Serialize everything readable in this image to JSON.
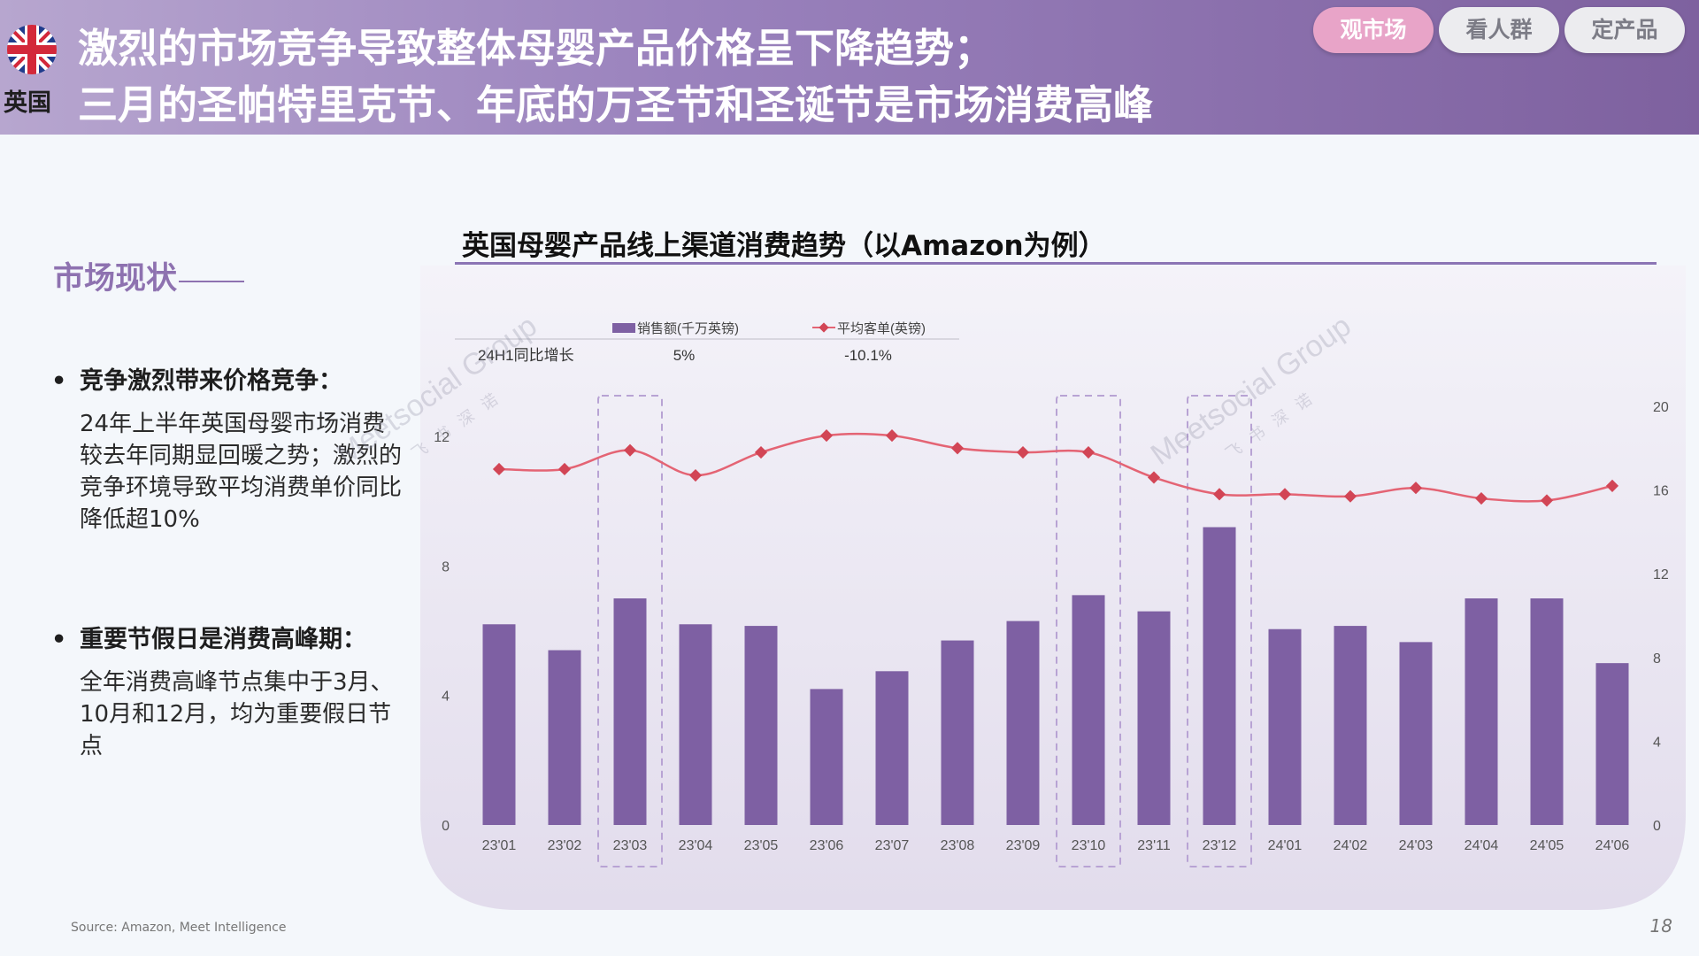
{
  "header": {
    "country": "英国",
    "title_line1": "激烈的市场竞争导致整体母婴产品价格呈下降趋势；",
    "title_line2": "三月的圣帕特里克节、年底的万圣节和圣诞节是市场消费高峰",
    "tabs": [
      {
        "label": "观市场",
        "active": true
      },
      {
        "label": "看人群",
        "active": false
      },
      {
        "label": "定产品",
        "active": false
      }
    ]
  },
  "sidebar": {
    "section_title": "市场现状",
    "bullets": [
      {
        "heading": "竞争激烈带来价格竞争：",
        "body": "24年上半年英国母婴市场消费较去年同期显回暖之势；激烈的竞争环境导致平均消费单价同比降低超10%"
      },
      {
        "heading": "重要节假日是消费高峰期：",
        "body": "全年消费高峰节点集中于3月、10月和12月，均为重要假日节点"
      }
    ]
  },
  "footer": {
    "source": "Source: Amazon, Meet Intelligence",
    "page_number": "18"
  },
  "watermarks": [
    {
      "text": "Meetsocial Group",
      "sub": "飞书深诺"
    },
    {
      "text": "Meetsocial Group",
      "sub": "飞书深诺"
    }
  ],
  "colors": {
    "bar": "#7e60a3",
    "line": "#e46474",
    "marker": "#d24555",
    "highlight_box": "#b8a3d4",
    "accent": "#8e72b0"
  },
  "chart_data": {
    "type": "bar+line",
    "title": "英国母婴产品线上渠道消费趋势（以Amazon为例）",
    "categories": [
      "23'01",
      "23'02",
      "23'03",
      "23'04",
      "23'05",
      "23'06",
      "23'07",
      "23'08",
      "23'09",
      "23'10",
      "23'11",
      "23'12",
      "24'01",
      "24'02",
      "24'03",
      "24'04",
      "24'05",
      "24'06"
    ],
    "series": [
      {
        "name": "销售额(千万英镑)",
        "type": "bar",
        "axis": "left",
        "values": [
          6.2,
          5.4,
          7.0,
          6.2,
          6.15,
          4.2,
          4.75,
          5.7,
          6.3,
          7.1,
          6.6,
          9.2,
          6.05,
          6.15,
          5.65,
          7.0,
          7.0,
          5.0
        ]
      },
      {
        "name": "平均客单(英镑)",
        "type": "line",
        "axis": "right",
        "values": [
          17.0,
          17.0,
          17.9,
          16.7,
          17.8,
          18.6,
          18.6,
          18.0,
          17.8,
          17.8,
          16.6,
          15.8,
          15.8,
          15.7,
          16.1,
          15.6,
          15.5,
          16.2
        ]
      }
    ],
    "left_axis": {
      "ticks": [
        0,
        4,
        8,
        12
      ],
      "ylim": [
        0,
        14
      ]
    },
    "right_axis": {
      "ticks": [
        0,
        4,
        8,
        12,
        16,
        20
      ],
      "ylim": [
        0,
        20
      ]
    },
    "highlighted_categories": [
      "23'03",
      "23'10",
      "23'12"
    ],
    "legend_table": {
      "row_label": "24H1同比增长",
      "values": [
        "5%",
        "-10.1%"
      ]
    },
    "legend_position": "top-left"
  }
}
